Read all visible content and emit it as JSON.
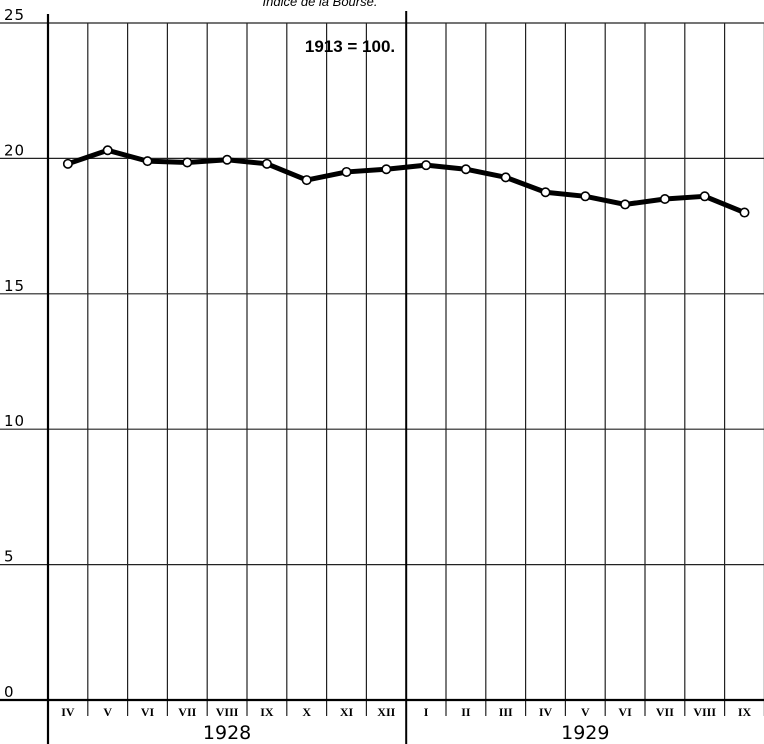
{
  "chart_data": {
    "type": "line",
    "title": "Indice de la Bourse.",
    "note": "1913 = 100.",
    "xlabel": "",
    "ylabel": "",
    "ylim": [
      0,
      25
    ],
    "yticks": [
      0,
      5,
      10,
      15,
      20,
      25
    ],
    "ytick_labels": [
      "0",
      "5",
      "10",
      "15",
      "20",
      "25"
    ],
    "grid": true,
    "years": [
      {
        "label": "1928",
        "months": 9
      },
      {
        "label": "1929",
        "months": 9
      }
    ],
    "categories": [
      "IV",
      "V",
      "VI",
      "VII",
      "VIII",
      "IX",
      "X",
      "XI",
      "XII",
      "I",
      "II",
      "III",
      "IV",
      "V",
      "VI",
      "VII",
      "VIII",
      "IX"
    ],
    "series": [
      {
        "values": [
          19.8,
          20.3,
          19.9,
          19.85,
          19.95,
          19.8,
          19.2,
          19.5,
          19.6,
          19.75,
          19.6,
          19.3,
          18.75,
          18.6,
          18.3,
          18.5,
          18.6,
          18.0
        ],
        "color": "#000000"
      }
    ]
  }
}
